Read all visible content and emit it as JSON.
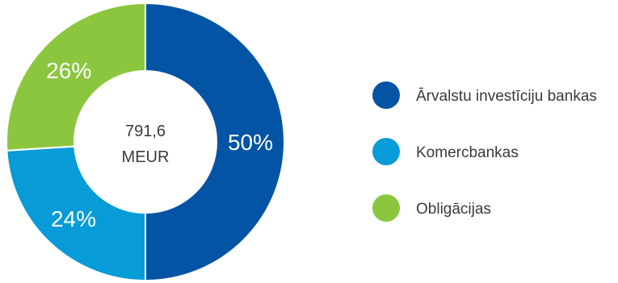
{
  "chart_data": {
    "type": "pie",
    "center_label": {
      "value": "791,6",
      "unit": "MEUR"
    },
    "categories": [
      "Ārvalstu investīciju bankas",
      "Komercbankas",
      "Obligācijas"
    ],
    "values": [
      50,
      24,
      26
    ],
    "value_labels": [
      "50%",
      "24%",
      "26%"
    ],
    "colors": [
      "#0354a4",
      "#079bd8",
      "#8cc63e"
    ],
    "legend": [
      {
        "label": "Ārvalstu investīciju bankas",
        "color": "#0354a4"
      },
      {
        "label": "Komercbankas",
        "color": "#079bd8"
      },
      {
        "label": "Obligācijas",
        "color": "#8cc63e"
      }
    ],
    "legend_position": "right",
    "donut": true
  }
}
